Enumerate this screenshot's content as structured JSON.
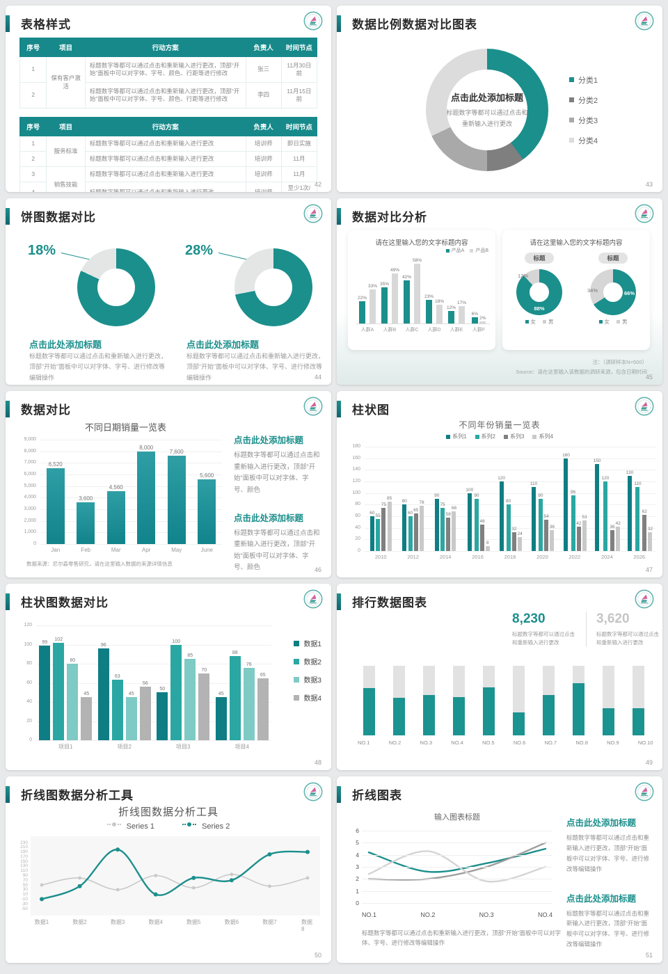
{
  "accent": "#1b8f8c",
  "slides": {
    "s42": {
      "title": "表格样式",
      "page": "42",
      "tables": [
        {
          "headers": [
            "序号",
            "项目",
            "行动方案",
            "负责人",
            "时间节点"
          ],
          "col_widths": [
            "9%",
            "13%",
            "54%",
            "12%",
            "12%"
          ],
          "rows": [
            {
              "no": "1",
              "project": "保有客户激活",
              "project_span": 2,
              "plan": "标题数字等都可以通过点击和重新输入进行更改，顶部“开始”面板中可以对字体、字号、颜色、行距等进行修改",
              "owner": "张三",
              "time": "11月30日前"
            },
            {
              "no": "2",
              "plan": "标题数字等都可以通过点击和重新输入进行更改，顶部“开始”面板中可以对字体、字号、颜色、行距等进行修改",
              "owner": "李四",
              "time": "11月15日前"
            }
          ]
        },
        {
          "headers": [
            "序号",
            "项目",
            "行动方案",
            "负责人",
            "时间节点"
          ],
          "col_widths": [
            "9%",
            "13%",
            "54%",
            "12%",
            "12%"
          ],
          "rows": [
            {
              "no": "1",
              "project": "服务标准",
              "project_span": 2,
              "plan": "标题数字等都可以通过点击和重新输入进行更改",
              "owner": "培训师",
              "time": "即日实施"
            },
            {
              "no": "2",
              "plan": "标题数字等都可以通过点击和重新输入进行更改",
              "owner": "培训师",
              "time": "11月"
            },
            {
              "no": "3",
              "project": "销售技能",
              "project_span": 2,
              "plan": "标题数字等都可以通过点击和重新输入进行更改",
              "owner": "培训师",
              "time": "11月"
            },
            {
              "no": "4",
              "plan": "标题数字等都可以通过点击和重新输入进行更改",
              "owner": "培训师",
              "time": "至少1次/月"
            }
          ]
        }
      ]
    },
    "s43": {
      "title": "数据比例数据对比图表",
      "page": "43",
      "center_title": "点击此处添加标题",
      "center_sub": "标题数字等都可以通过点击和重新输入进行更改",
      "chart_data": {
        "type": "pie",
        "labels": [
          "分类1",
          "分类2",
          "分类3",
          "分类4"
        ],
        "values": [
          40,
          10,
          18,
          32
        ],
        "colors": [
          "#1b8f8c",
          "#7f7f7f",
          "#a9a9a9",
          "#dcdcdc"
        ]
      }
    },
    "s44": {
      "title": "饼图数据对比",
      "page": "44",
      "blocks": [
        {
          "pct": "18%",
          "heading": "点击此处添加标题",
          "body": "标题数字等都可以通过点击和重新输入进行更改，顶部“开始”面板中可以对字体、字号、进行修改等编辑操作",
          "chart_data": {
            "type": "pie",
            "values": [
              82,
              18
            ],
            "colors": [
              "#1b8f8c",
              "#e4e6e6"
            ]
          }
        },
        {
          "pct": "28%",
          "heading": "点击此处添加标题",
          "body": "标题数字等都可以通过点击和重新输入进行更改，顶部“开始”面板中可以对字体、字号、进行修改等编辑操作",
          "chart_data": {
            "type": "pie",
            "values": [
              72,
              28
            ],
            "colors": [
              "#1b8f8c",
              "#e4e6e6"
            ]
          }
        }
      ]
    },
    "s45": {
      "title": "数据对比分析",
      "page": "45",
      "left": {
        "title": "请在这里输入您的文字标题内容",
        "chart_data": {
          "type": "bar",
          "categories": [
            "人群A",
            "人群B",
            "人群C",
            "人群D",
            "人群E",
            "人群F"
          ],
          "ymax": 65,
          "series": [
            {
              "name": "产品A",
              "color": "#1b8f8c",
              "values": [
                22,
                35,
                42,
                23,
                12,
                6
              ],
              "labels": [
                "22%",
                "35%",
                "42%",
                "23%",
                "12%",
                "6%"
              ]
            },
            {
              "name": "产品B",
              "color": "#d8d8d8",
              "values": [
                33,
                49,
                58,
                18,
                17,
                2
              ],
              "labels": [
                "33%",
                "49%",
                "58%",
                "18%",
                "17%",
                "2%"
              ]
            }
          ]
        }
      },
      "right": {
        "title": "请在这里输入您的文字标题内容",
        "badge": "标题",
        "legend": [
          "女",
          "男"
        ],
        "legend_colors": [
          "#1b8f8c",
          "#cfcfcf"
        ],
        "donuts": [
          {
            "label_main": "88%",
            "label_sec": "12%",
            "chart_data": {
              "type": "pie",
              "labels": [
                "女",
                "男"
              ],
              "values": [
                88,
                12
              ],
              "colors": [
                "#1b8f8c",
                "#d6d6d6"
              ]
            }
          },
          {
            "label_main": "66%",
            "label_sec": "34%",
            "chart_data": {
              "type": "pie",
              "labels": [
                "女",
                "男"
              ],
              "values": [
                66,
                34
              ],
              "colors": [
                "#1b8f8c",
                "#d6d6d6"
              ]
            }
          }
        ]
      },
      "note1": "注：（调研样本N=500）",
      "note2": "Source：请在这里输入该数据的调研来源，包含日期时间"
    },
    "s46": {
      "title": "数据对比",
      "page": "46",
      "chart_title": "不同日期销量一览表",
      "chart_data": {
        "type": "bar",
        "categories": [
          "Jan",
          "Feb",
          "Mar",
          "Apr",
          "May",
          "June"
        ],
        "values": [
          6520,
          3600,
          4560,
          8000,
          7600,
          5600
        ],
        "labels": [
          "6,520",
          "3,600",
          "4,560",
          "8,000",
          "7,600",
          "5,600"
        ],
        "ymax": 9000,
        "yticks": [
          "9,000",
          "8,000",
          "7,000",
          "6,000",
          "5,000",
          "4,000",
          "3,000",
          "2,000",
          "1,000",
          "0"
        ]
      },
      "footnote": "数据来源：尼尔森零售研究，请在这里输入数据的来源详情信息",
      "text_blocks": [
        {
          "heading": "点击此处添加标题",
          "body": "标题数字等都可以通过点击和重新输入进行更改，顶部“开始”面板中可以对字体、字号、颜色"
        },
        {
          "heading": "点击此处添加标题",
          "body": "标题数字等都可以通过点击和重新输入进行更改，顶部“开始”面板中可以对字体、字号、颜色"
        }
      ]
    },
    "s47": {
      "title": "柱状图",
      "page": "47",
      "chart_title": "不同年份销量一览表",
      "chart_data": {
        "type": "bar",
        "categories": [
          "2010",
          "2012",
          "2014",
          "2016",
          "2018",
          "2020",
          "2022",
          "2024",
          "2026"
        ],
        "ymax": 180,
        "yticks": [
          "180",
          "160",
          "140",
          "120",
          "100",
          "80",
          "60",
          "40",
          "20",
          "0"
        ],
        "series": [
          {
            "name": "系列1",
            "color": "#0f7e84",
            "values": [
              60,
              80,
              90,
              100,
              120,
              110,
              160,
              150,
              130
            ]
          },
          {
            "name": "系列2",
            "color": "#2aa7a3",
            "values": [
              55,
              60,
              75,
              90,
              80,
              90,
              96,
              120,
              110
            ]
          },
          {
            "name": "系列3",
            "color": "#808080",
            "values": [
              75,
              65,
              58,
              46,
              32,
              54,
              42,
              36,
              62
            ]
          },
          {
            "name": "系列4",
            "color": "#c9c9c9",
            "values": [
              85,
              78,
              68,
              8,
              24,
              36,
              53,
              42,
              32
            ]
          }
        ]
      }
    },
    "s48": {
      "title": "柱状图数据对比",
      "page": "48",
      "chart_data": {
        "type": "bar",
        "categories": [
          "项目1",
          "项目2",
          "项目3",
          "项目4"
        ],
        "ymax": 120,
        "yticks": [
          "120",
          "100",
          "80",
          "60",
          "40",
          "20",
          "0"
        ],
        "series": [
          {
            "name": "数据1",
            "color": "#0f7e84",
            "values": [
              99,
              96,
              50,
              45
            ]
          },
          {
            "name": "数据2",
            "color": "#2aa7a3",
            "values": [
              102,
              63,
              100,
              88
            ]
          },
          {
            "name": "数据3",
            "color": "#7ecac5",
            "values": [
              80,
              45,
              85,
              76
            ]
          },
          {
            "name": "数据4",
            "color": "#b3b3b3",
            "values": [
              45,
              56,
              70,
              65
            ]
          }
        ]
      }
    },
    "s49": {
      "title": "排行数据图表",
      "page": "49",
      "stats": [
        {
          "value": "8,230",
          "caption": "标题数字等都可以通过点击和重新输入进行更改"
        },
        {
          "value": "3,620",
          "caption": "标题数字等都可以通过点击和重新输入进行更改"
        }
      ],
      "chart_data": {
        "type": "bar",
        "categories": [
          "NO.1",
          "NO.2",
          "NO.3",
          "NO.4",
          "NO.5",
          "NO.6",
          "NO.7",
          "NO.8",
          "NO.9",
          "NO.10"
        ],
        "values": [
          0.68,
          0.54,
          0.58,
          0.55,
          0.69,
          0.33,
          0.58,
          0.75,
          0.39,
          0.39
        ]
      }
    },
    "s50": {
      "title": "折线图数据分析工具",
      "page": "50",
      "chart_title": "折线图数据分析工具",
      "chart_data": {
        "type": "line",
        "categories": [
          "数据1",
          "数据2",
          "数据3",
          "数据4",
          "数据5",
          "数据6",
          "数据7",
          "数据8"
        ],
        "ymin": -50,
        "ymax": 230,
        "yticks": [
          "230",
          "210",
          "190",
          "170",
          "150",
          "130",
          "110",
          "90",
          "70",
          "50",
          "30",
          "10",
          "-10",
          "-30",
          "-50"
        ],
        "series": [
          {
            "name": "Series 1",
            "color": "#c9c9c9",
            "values": [
              50,
              80,
              30,
              90,
              38,
              95,
              45,
              80
            ]
          },
          {
            "name": "Series 2",
            "color": "#1b8f8c",
            "values": [
              -10,
              45,
              200,
              10,
              80,
              70,
              180,
              190
            ]
          }
        ]
      }
    },
    "s51": {
      "title": "折线图表",
      "page": "51",
      "chart_title": "输入图表标题",
      "chart_data": {
        "type": "line",
        "categories": [
          "NO.1",
          "NO.2",
          "NO.3",
          "NO.4"
        ],
        "ymin": 0,
        "ymax": 6,
        "yticks": [
          "6",
          "5",
          "4",
          "3",
          "2",
          "1",
          "0"
        ],
        "series": [
          {
            "name": "line-teal",
            "color": "#1b8f8c",
            "values": [
              4.2,
              2.6,
              3.3,
              4.5
            ]
          },
          {
            "name": "line-dark-gray",
            "color": "#9e9e9e",
            "values": [
              2,
              2,
              3,
              5
            ]
          },
          {
            "name": "line-light-gray",
            "color": "#d4d4d4",
            "values": [
              2.4,
              4.3,
              1.8,
              3
            ]
          }
        ]
      },
      "note": "标题数字等都可以通过点击和重新输入进行更改，顶部“开始”面板中可以对字体、字号、进行修改等编辑操作",
      "text_blocks": [
        {
          "heading": "点击此处添加标题",
          "body": "标题数字等都可以通过点击和重新输入进行更改，顶部“开始”面板中可以对字体、字号、进行修改等编辑操作"
        },
        {
          "heading": "点击此处添加标题",
          "body": "标题数字等都可以通过点击和重新输入进行更改，顶部“开始”面板中可以对字体、字号、进行修改等编辑操作"
        }
      ]
    }
  }
}
